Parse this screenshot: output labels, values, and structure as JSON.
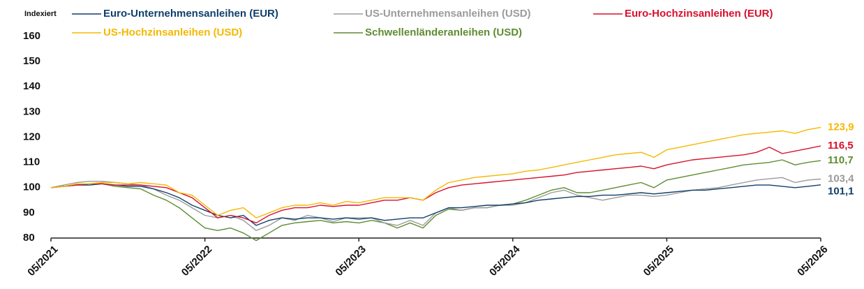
{
  "chart_data": {
    "type": "line",
    "y_label": "Indexiert",
    "categories": [
      "05/2021",
      null,
      null,
      null,
      null,
      null,
      null,
      null,
      null,
      null,
      null,
      null,
      "05/2022",
      null,
      null,
      null,
      null,
      null,
      null,
      null,
      null,
      null,
      null,
      null,
      "05/2023",
      null,
      null,
      null,
      null,
      null,
      null,
      null,
      null,
      null,
      null,
      null,
      "05/2024",
      null,
      null,
      null,
      null,
      null,
      null,
      null,
      null,
      null,
      null,
      null,
      "05/2025",
      null,
      null,
      null,
      null,
      null,
      null,
      null,
      null,
      null,
      null,
      null,
      "05/2026"
    ],
    "ylim": [
      80,
      160
    ],
    "yticks": [
      80,
      90,
      100,
      110,
      120,
      130,
      140,
      150,
      160
    ],
    "series": [
      {
        "name": "Euro-Unternehmensanleihen (EUR)",
        "color": "#103f6b",
        "values": [
          100,
          100.5,
          101,
          101,
          101.5,
          101,
          100.5,
          100.5,
          99.5,
          98,
          96,
          93,
          91,
          89,
          88,
          89,
          85,
          87,
          88,
          87.5,
          88,
          88,
          87.5,
          88,
          87.5,
          88,
          87,
          87.5,
          88,
          88,
          90,
          92,
          92,
          92.5,
          93,
          93,
          93.5,
          94,
          95,
          95.5,
          96,
          96.5,
          96.5,
          97,
          97,
          97.5,
          98,
          97.5,
          98,
          98.5,
          99,
          99,
          99.5,
          100,
          100.5,
          101,
          101,
          100.5,
          100,
          100.5,
          101.1
        ],
        "value_labels": [
          null,
          null,
          null,
          null,
          null,
          null,
          null,
          null,
          null,
          null,
          null,
          null,
          null,
          null,
          null,
          null,
          null,
          null,
          null,
          null,
          null,
          null,
          null,
          null,
          null,
          null,
          null,
          null,
          null,
          null,
          null,
          null,
          null,
          null,
          null,
          null,
          null,
          null,
          null,
          null,
          null,
          null,
          null,
          null,
          null,
          null,
          null,
          null,
          null,
          null,
          null,
          null,
          null,
          null,
          null,
          null,
          null,
          null,
          null,
          null,
          "101,1"
        ]
      },
      {
        "name": "US-Unternehmensanleihen (USD)",
        "color": "#9b9b9b",
        "values": [
          100,
          101,
          102,
          102.5,
          102.5,
          102,
          101.5,
          101,
          99.5,
          97,
          95,
          92,
          89,
          88,
          89,
          87,
          83,
          85,
          88,
          87,
          89,
          88,
          86.5,
          88,
          88,
          88,
          86,
          85,
          87,
          85,
          90,
          92,
          91,
          92,
          92,
          93,
          93,
          94,
          96,
          98,
          99,
          97,
          96,
          95,
          96,
          97,
          97,
          96.5,
          97,
          98,
          99,
          99.5,
          100,
          101,
          102,
          103,
          103.5,
          104,
          102,
          103,
          103.4
        ],
        "value_labels": [
          null,
          null,
          null,
          null,
          null,
          null,
          null,
          null,
          null,
          null,
          null,
          null,
          null,
          null,
          null,
          null,
          null,
          null,
          null,
          null,
          null,
          null,
          null,
          null,
          null,
          null,
          null,
          null,
          null,
          null,
          null,
          null,
          null,
          null,
          null,
          null,
          null,
          null,
          null,
          null,
          null,
          null,
          null,
          null,
          null,
          null,
          null,
          null,
          null,
          null,
          null,
          null,
          null,
          null,
          null,
          null,
          null,
          null,
          null,
          null,
          "103,4"
        ]
      },
      {
        "name": "Euro-Hochzinsanleihen (EUR)",
        "color": "#d7102e",
        "values": [
          100,
          100.5,
          101,
          101.5,
          101.5,
          101,
          101,
          101,
          100.5,
          100,
          98,
          96,
          92,
          88,
          89,
          88,
          86,
          89,
          91,
          92,
          92,
          93,
          92.5,
          93,
          93,
          94,
          95,
          95,
          96,
          95,
          98,
          100,
          101,
          101.5,
          102,
          102.5,
          103,
          103.5,
          104,
          104.5,
          105,
          106,
          106.5,
          107,
          107.5,
          108,
          108.5,
          107.5,
          109,
          110,
          111,
          111.5,
          112,
          112.5,
          113,
          114,
          116,
          113.5,
          114.5,
          115.5,
          116.5
        ],
        "value_labels": [
          null,
          null,
          null,
          null,
          null,
          null,
          null,
          null,
          null,
          null,
          null,
          null,
          null,
          null,
          null,
          null,
          null,
          null,
          null,
          null,
          null,
          null,
          null,
          null,
          null,
          null,
          null,
          null,
          null,
          null,
          null,
          null,
          null,
          null,
          null,
          null,
          null,
          null,
          null,
          null,
          null,
          null,
          null,
          null,
          null,
          null,
          null,
          null,
          null,
          null,
          null,
          null,
          null,
          null,
          null,
          null,
          null,
          null,
          null,
          null,
          "116,5"
        ]
      },
      {
        "name": "US-Hochzinsanleihen (USD)",
        "color": "#f5b800",
        "values": [
          100,
          100.5,
          101.5,
          101.5,
          102,
          102,
          101.5,
          102,
          101.5,
          101,
          98,
          97,
          93,
          89,
          91,
          92,
          88,
          90,
          92,
          93,
          93,
          94,
          93,
          94.5,
          94,
          95,
          96,
          96,
          96,
          95,
          99,
          102,
          103,
          104,
          104.5,
          105,
          105.5,
          106.5,
          107,
          108,
          109,
          110,
          111,
          112,
          113,
          113.5,
          114,
          112,
          115,
          116,
          117,
          118,
          119,
          120,
          121,
          121.5,
          122,
          122.5,
          121.5,
          123,
          123.9
        ],
        "value_labels": [
          null,
          null,
          null,
          null,
          null,
          null,
          null,
          null,
          null,
          null,
          null,
          null,
          null,
          null,
          null,
          null,
          null,
          null,
          null,
          null,
          null,
          null,
          null,
          null,
          null,
          null,
          null,
          null,
          null,
          null,
          null,
          null,
          null,
          null,
          null,
          null,
          null,
          null,
          null,
          null,
          null,
          null,
          null,
          null,
          null,
          null,
          null,
          null,
          null,
          null,
          null,
          null,
          null,
          null,
          null,
          null,
          null,
          null,
          null,
          null,
          "123,9"
        ]
      },
      {
        "name": "Schwellenländeranleihen (USD)",
        "color": "#5e8c31",
        "values": [
          100,
          100.5,
          101,
          101.5,
          101.5,
          100.5,
          100,
          99.5,
          97,
          95,
          92,
          88,
          84,
          83,
          84,
          82,
          79,
          82,
          85,
          86,
          86.5,
          87,
          86,
          86.5,
          86,
          87,
          86,
          84,
          86,
          84,
          89,
          91.5,
          91,
          92,
          92,
          93,
          93.5,
          95,
          97,
          99,
          100,
          98,
          98,
          99,
          100,
          101,
          102,
          100,
          103,
          104,
          105,
          106,
          107,
          108,
          109,
          109.5,
          110,
          111,
          109,
          110,
          110.7
        ],
        "value_labels": [
          null,
          null,
          null,
          null,
          null,
          null,
          null,
          null,
          null,
          null,
          null,
          null,
          null,
          null,
          null,
          null,
          null,
          null,
          null,
          null,
          null,
          null,
          null,
          null,
          null,
          null,
          null,
          null,
          null,
          null,
          null,
          null,
          null,
          null,
          null,
          null,
          null,
          null,
          null,
          null,
          null,
          null,
          null,
          null,
          null,
          null,
          null,
          null,
          null,
          null,
          null,
          null,
          null,
          null,
          null,
          null,
          null,
          null,
          null,
          null,
          "110,7"
        ]
      }
    ]
  }
}
